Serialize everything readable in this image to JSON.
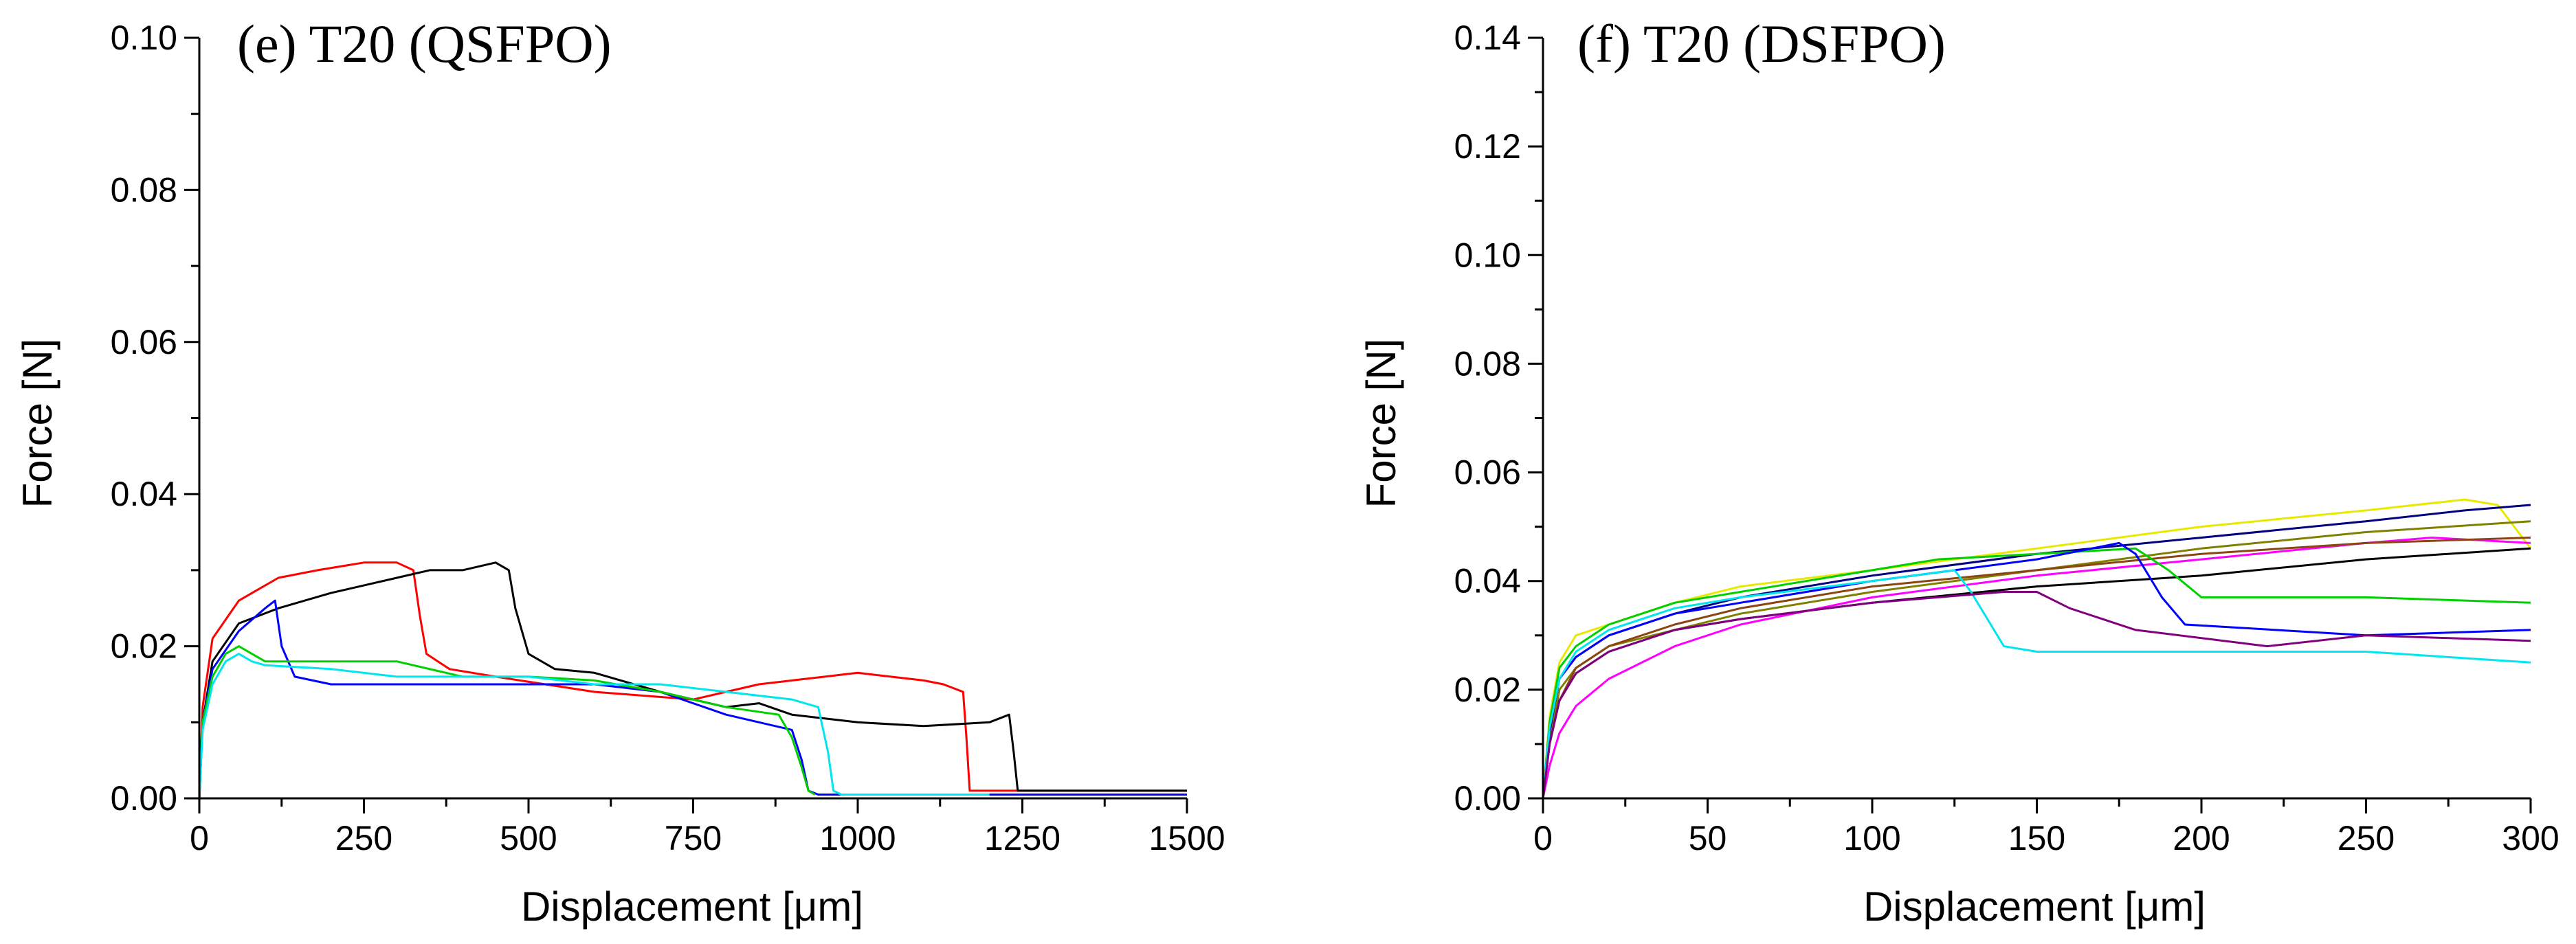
{
  "chart_data": [
    {
      "type": "line",
      "title": "(e) T20 (QSFPO)",
      "xlabel": "Displacement [μm]",
      "ylabel": "Force [N]",
      "xlim": [
        0,
        1500
      ],
      "ylim": [
        0,
        0.1
      ],
      "xticks": [
        "0",
        "250",
        "500",
        "750",
        "1000",
        "1250",
        "1500"
      ],
      "yticks": [
        "0.00",
        "0.02",
        "0.04",
        "0.06",
        "0.08",
        "0.10"
      ],
      "xtick_values": [
        0,
        250,
        500,
        750,
        1000,
        1250,
        1500
      ],
      "ytick_values": [
        0,
        0.02,
        0.04,
        0.06,
        0.08,
        0.1
      ],
      "grid": false,
      "legend": "none",
      "series": [
        {
          "name": "red",
          "color": "#ff0000",
          "x": [
            0,
            5,
            20,
            60,
            120,
            180,
            250,
            300,
            325,
            335,
            345,
            380,
            450,
            600,
            750,
            800,
            850,
            900,
            950,
            1000,
            1050,
            1100,
            1130,
            1160,
            1165,
            1170,
            1250,
            1400,
            1500
          ],
          "y": [
            0,
            0.012,
            0.021,
            0.026,
            0.029,
            0.03,
            0.031,
            0.031,
            0.03,
            0.024,
            0.019,
            0.017,
            0.016,
            0.014,
            0.013,
            0.014,
            0.015,
            0.0155,
            0.016,
            0.0165,
            0.016,
            0.0155,
            0.015,
            0.014,
            0.008,
            0.001,
            0.001,
            0.001,
            0.001
          ]
        },
        {
          "name": "black",
          "color": "#000000",
          "x": [
            0,
            5,
            20,
            60,
            120,
            200,
            300,
            350,
            400,
            450,
            470,
            480,
            500,
            540,
            600,
            700,
            800,
            850,
            900,
            1000,
            1100,
            1200,
            1230,
            1237,
            1243,
            1400,
            1500
          ],
          "y": [
            0,
            0.01,
            0.018,
            0.023,
            0.025,
            0.027,
            0.029,
            0.03,
            0.03,
            0.031,
            0.03,
            0.025,
            0.019,
            0.017,
            0.0165,
            0.014,
            0.012,
            0.0125,
            0.011,
            0.01,
            0.0095,
            0.01,
            0.011,
            0.006,
            0.001,
            0.001,
            0.001
          ]
        },
        {
          "name": "blue",
          "color": "#0000ff",
          "x": [
            0,
            5,
            20,
            60,
            100,
            115,
            125,
            145,
            200,
            300,
            400,
            500,
            600,
            700,
            800,
            900,
            915,
            925,
            940,
            1000,
            1100,
            1200,
            1300,
            1400,
            1500
          ],
          "y": [
            0,
            0.01,
            0.017,
            0.022,
            0.025,
            0.026,
            0.02,
            0.016,
            0.015,
            0.015,
            0.015,
            0.015,
            0.015,
            0.014,
            0.011,
            0.009,
            0.005,
            0.001,
            0.0005,
            0.0005,
            0.0005,
            0.0005,
            0.0005,
            0.0005,
            0.0005
          ]
        },
        {
          "name": "green",
          "color": "#00d000",
          "x": [
            0,
            5,
            20,
            40,
            60,
            80,
            100,
            200,
            300,
            400,
            500,
            600,
            700,
            800,
            880,
            900,
            915,
            925,
            935
          ],
          "y": [
            0,
            0.01,
            0.016,
            0.019,
            0.02,
            0.019,
            0.018,
            0.018,
            0.018,
            0.016,
            0.016,
            0.0155,
            0.014,
            0.012,
            0.011,
            0.008,
            0.004,
            0.001,
            0.0005
          ]
        },
        {
          "name": "cyan",
          "color": "#00e5ee",
          "x": [
            0,
            5,
            20,
            40,
            60,
            80,
            100,
            200,
            300,
            400,
            500,
            600,
            700,
            800,
            900,
            940,
            955,
            963,
            975,
            1000,
            1100,
            1200
          ],
          "y": [
            0,
            0.009,
            0.015,
            0.018,
            0.019,
            0.018,
            0.0175,
            0.017,
            0.016,
            0.016,
            0.016,
            0.015,
            0.015,
            0.014,
            0.013,
            0.012,
            0.006,
            0.001,
            0.0005,
            0.0005,
            0.0005,
            0.0005
          ]
        }
      ]
    },
    {
      "type": "line",
      "title": "(f) T20 (DSFPO)",
      "xlabel": "Displacement [μm]",
      "ylabel": "Force [N]",
      "xlim": [
        0,
        300
      ],
      "ylim": [
        0,
        0.14
      ],
      "xticks": [
        "0",
        "50",
        "100",
        "150",
        "200",
        "250",
        "300"
      ],
      "yticks": [
        "0.00",
        "0.02",
        "0.04",
        "0.06",
        "0.08",
        "0.10",
        "0.12",
        "0.14"
      ],
      "xtick_values": [
        0,
        50,
        100,
        150,
        200,
        250,
        300
      ],
      "ytick_values": [
        0,
        0.02,
        0.04,
        0.06,
        0.08,
        0.1,
        0.12,
        0.14
      ],
      "grid": false,
      "legend": "none",
      "series": [
        {
          "name": "yellow",
          "color": "#e8e800",
          "x": [
            0,
            2,
            5,
            10,
            20,
            40,
            60,
            100,
            150,
            200,
            250,
            280,
            290,
            295,
            300
          ],
          "y": [
            0,
            0.015,
            0.025,
            0.03,
            0.032,
            0.036,
            0.039,
            0.042,
            0.046,
            0.05,
            0.053,
            0.055,
            0.054,
            0.05,
            0.046
          ]
        },
        {
          "name": "navy",
          "color": "#000080",
          "x": [
            0,
            2,
            5,
            10,
            20,
            40,
            60,
            100,
            150,
            200,
            250,
            280,
            300
          ],
          "y": [
            0,
            0.012,
            0.022,
            0.026,
            0.03,
            0.034,
            0.037,
            0.041,
            0.045,
            0.048,
            0.051,
            0.053,
            0.054
          ]
        },
        {
          "name": "olive",
          "color": "#808000",
          "x": [
            0,
            2,
            5,
            10,
            20,
            40,
            60,
            100,
            150,
            200,
            250,
            300
          ],
          "y": [
            0,
            0.01,
            0.02,
            0.024,
            0.028,
            0.031,
            0.034,
            0.038,
            0.042,
            0.046,
            0.049,
            0.051
          ]
        },
        {
          "name": "magenta",
          "color": "#ff00ff",
          "x": [
            0,
            2,
            5,
            10,
            20,
            40,
            60,
            100,
            150,
            200,
            250,
            270,
            300
          ],
          "y": [
            0,
            0.006,
            0.012,
            0.017,
            0.022,
            0.028,
            0.032,
            0.037,
            0.041,
            0.044,
            0.047,
            0.048,
            0.047
          ]
        },
        {
          "name": "black",
          "color": "#000000",
          "x": [
            0,
            2,
            5,
            10,
            20,
            40,
            60,
            100,
            150,
            200,
            250,
            300
          ],
          "y": [
            0,
            0.01,
            0.018,
            0.023,
            0.027,
            0.031,
            0.033,
            0.036,
            0.039,
            0.041,
            0.044,
            0.046
          ]
        },
        {
          "name": "brown",
          "color": "#8b4513",
          "x": [
            0,
            2,
            5,
            10,
            20,
            40,
            60,
            100,
            150,
            200,
            250,
            300
          ],
          "y": [
            0,
            0.01,
            0.018,
            0.024,
            0.028,
            0.032,
            0.035,
            0.039,
            0.042,
            0.045,
            0.047,
            0.048
          ]
        },
        {
          "name": "green",
          "color": "#00d000",
          "x": [
            0,
            2,
            5,
            10,
            20,
            40,
            60,
            100,
            120,
            150,
            180,
            190,
            200,
            250,
            300
          ],
          "y": [
            0,
            0.014,
            0.024,
            0.028,
            0.032,
            0.036,
            0.038,
            0.042,
            0.044,
            0.045,
            0.046,
            0.042,
            0.037,
            0.037,
            0.036
          ]
        },
        {
          "name": "blue",
          "color": "#0000ff",
          "x": [
            0,
            2,
            5,
            10,
            20,
            40,
            60,
            100,
            150,
            175,
            180,
            188,
            195,
            250,
            300
          ],
          "y": [
            0,
            0.013,
            0.022,
            0.026,
            0.03,
            0.034,
            0.036,
            0.04,
            0.044,
            0.047,
            0.045,
            0.037,
            0.032,
            0.03,
            0.031
          ]
        },
        {
          "name": "cyan",
          "color": "#00e5ee",
          "x": [
            0,
            2,
            5,
            10,
            20,
            40,
            60,
            100,
            125,
            130,
            140,
            150,
            200,
            250,
            300
          ],
          "y": [
            0,
            0.013,
            0.022,
            0.027,
            0.031,
            0.035,
            0.037,
            0.04,
            0.042,
            0.038,
            0.028,
            0.027,
            0.027,
            0.027,
            0.025
          ]
        },
        {
          "name": "purple",
          "color": "#800080",
          "x": [
            0,
            2,
            5,
            10,
            20,
            40,
            60,
            100,
            140,
            150,
            160,
            180,
            220,
            250,
            300
          ],
          "y": [
            0,
            0.01,
            0.018,
            0.023,
            0.027,
            0.031,
            0.033,
            0.036,
            0.038,
            0.038,
            0.035,
            0.031,
            0.028,
            0.03,
            0.029
          ]
        }
      ]
    }
  ]
}
